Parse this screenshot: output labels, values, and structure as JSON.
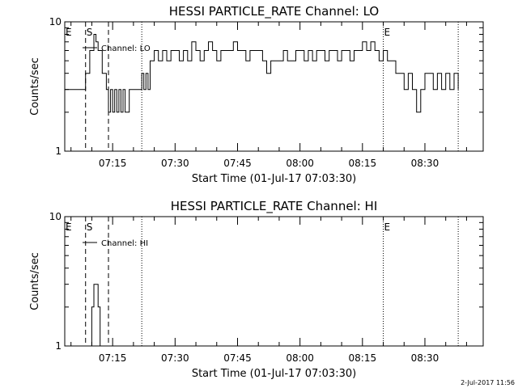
{
  "timestamp": "2-Jul-2017 11:56",
  "chart_data": [
    {
      "type": "line",
      "title": "HESSI PARTICLE_RATE Channel: LO",
      "xlabel": "Start Time (01-Jul-17 07:03:30)",
      "ylabel": "Counts/sec",
      "yscale": "log",
      "ylim": [
        1,
        10
      ],
      "xlim": [
        "07:03:30",
        "08:44:00"
      ],
      "grid": false,
      "y_tick_labels": [
        "1",
        "10"
      ],
      "x_tick_labels": [
        "07:15",
        "07:30",
        "07:45",
        "08:00",
        "08:15",
        "08:30"
      ],
      "legend": {
        "label": "Channel: LO",
        "position": "top-left"
      },
      "event_markers": [
        {
          "label": "E",
          "time": "07:03:30",
          "style": "none"
        },
        {
          "label": "S",
          "time": "07:08:30",
          "style": "dashed"
        },
        {
          "label": "",
          "time": "07:14:00",
          "style": "dashed"
        },
        {
          "label": "",
          "time": "07:22:00",
          "style": "dotted"
        },
        {
          "label": "E",
          "time": "08:20:00",
          "style": "dotted"
        },
        {
          "label": "",
          "time": "08:38:00",
          "style": "dotted"
        }
      ],
      "series": [
        {
          "name": "Channel: LO",
          "x": [
            "07:03:30",
            "07:07:30",
            "07:08:30",
            "07:09:30",
            "07:10:30",
            "07:11:00",
            "07:11:30",
            "07:12:30",
            "07:13:30",
            "07:14:00",
            "07:14:30",
            "07:15:00",
            "07:15:30",
            "07:16:00",
            "07:16:30",
            "07:17:00",
            "07:17:30",
            "07:18:00",
            "07:19:00",
            "07:21:30",
            "07:22:00",
            "07:22:30",
            "07:23:00",
            "07:23:30",
            "07:24:00",
            "07:25:00",
            "07:26:00",
            "07:27:00",
            "07:28:00",
            "07:29:00",
            "07:30:00",
            "07:31:00",
            "07:32:00",
            "07:33:00",
            "07:34:00",
            "07:35:00",
            "07:36:00",
            "07:37:00",
            "07:38:00",
            "07:39:00",
            "07:40:00",
            "07:41:00",
            "07:42:00",
            "07:43:00",
            "07:44:00",
            "07:45:00",
            "07:46:00",
            "07:47:00",
            "07:48:00",
            "07:49:00",
            "07:50:00",
            "07:51:00",
            "07:52:00",
            "07:53:00",
            "07:54:00",
            "07:55:00",
            "07:56:00",
            "07:57:00",
            "07:58:00",
            "07:59:00",
            "08:00:00",
            "08:01:00",
            "08:02:00",
            "08:03:00",
            "08:04:00",
            "08:05:00",
            "08:06:00",
            "08:07:00",
            "08:08:00",
            "08:09:00",
            "08:10:00",
            "08:11:00",
            "08:12:00",
            "08:13:00",
            "08:14:00",
            "08:15:00",
            "08:16:00",
            "08:17:00",
            "08:18:00",
            "08:19:00",
            "08:20:00",
            "08:21:00",
            "08:22:00",
            "08:23:00",
            "08:24:00",
            "08:25:00",
            "08:26:00",
            "08:27:00",
            "08:28:00",
            "08:29:00",
            "08:30:00",
            "08:31:00",
            "08:32:00",
            "08:33:00",
            "08:34:00",
            "08:35:00",
            "08:36:00",
            "08:37:00",
            "08:38:00"
          ],
          "y": [
            3,
            3,
            4,
            6,
            8,
            7,
            6,
            4,
            3,
            2,
            3,
            2,
            3,
            2,
            3,
            2,
            3,
            2,
            3,
            3,
            4,
            3,
            4,
            3,
            5,
            6,
            5,
            6,
            5,
            6,
            6,
            5,
            6,
            5,
            7,
            6,
            5,
            6,
            7,
            6,
            5,
            6,
            6,
            6,
            7,
            6,
            6,
            5,
            6,
            6,
            6,
            5,
            4,
            5,
            5,
            5,
            6,
            5,
            5,
            6,
            6,
            5,
            6,
            5,
            6,
            6,
            5,
            6,
            6,
            5,
            6,
            6,
            5,
            6,
            6,
            7,
            6,
            7,
            6,
            5,
            6,
            5,
            5,
            4,
            4,
            3,
            4,
            3,
            2,
            3,
            4,
            4,
            3,
            4,
            3,
            4,
            3,
            4,
            3
          ]
        }
      ]
    },
    {
      "type": "line",
      "title": "HESSI PARTICLE_RATE Channel: HI",
      "xlabel": "Start Time (01-Jul-17 07:03:30)",
      "ylabel": "Counts/sec",
      "yscale": "log",
      "ylim": [
        1,
        10
      ],
      "xlim": [
        "07:03:30",
        "08:44:00"
      ],
      "grid": false,
      "y_tick_labels": [
        "1",
        "10"
      ],
      "x_tick_labels": [
        "07:15",
        "07:30",
        "07:45",
        "08:00",
        "08:15",
        "08:30"
      ],
      "legend": {
        "label": "Channel: HI",
        "position": "top-left"
      },
      "event_markers": [
        {
          "label": "E",
          "time": "07:03:30",
          "style": "none"
        },
        {
          "label": "S",
          "time": "07:08:30",
          "style": "dashed"
        },
        {
          "label": "",
          "time": "07:14:00",
          "style": "dashed"
        },
        {
          "label": "",
          "time": "07:22:00",
          "style": "dotted"
        },
        {
          "label": "E",
          "time": "08:20:00",
          "style": "dotted"
        },
        {
          "label": "",
          "time": "08:38:00",
          "style": "dotted"
        }
      ],
      "series": [
        {
          "name": "Channel: HI",
          "x": [
            "07:09:30",
            "07:10:00",
            "07:10:30",
            "07:11:00",
            "07:11:30",
            "07:12:00"
          ],
          "y": [
            1,
            2,
            3,
            3,
            2,
            1
          ]
        }
      ]
    }
  ]
}
